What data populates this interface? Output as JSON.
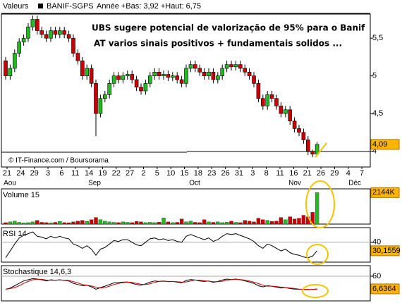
{
  "header": {
    "label": "Valeurs",
    "symbol": "BANIF-SGPS",
    "range": "Année +Bas: 3,92 +Haut: 6,75"
  },
  "chart_data": [
    {
      "type": "candlestick",
      "annotations": [
        {
          "text": "UBS sugere potencial de valorização de 95% para o Banif",
          "color": "#cc0000"
        },
        {
          "text": "AT varios sinais positivos + fundamentais solidos ...",
          "color": "#000000"
        }
      ],
      "source": "© IT-Finance.com / Boursorama",
      "date_labels": [
        "21",
        "24",
        "29",
        "3",
        "6",
        "11",
        "14",
        "19",
        "22",
        "27",
        "2",
        "5",
        "10",
        "15",
        "18",
        "23",
        "26",
        "31",
        "3",
        "8",
        "11",
        "16",
        "21",
        "26",
        "29",
        "4",
        "7"
      ],
      "month_labels": [
        "Aou",
        "Sep",
        "Oct",
        "Nov",
        "Déc"
      ],
      "open": [
        5.2,
        5.0,
        5.1,
        5.3,
        5.45,
        5.5,
        5.65,
        5.75,
        5.6,
        5.55,
        5.5,
        5.6,
        5.55,
        5.6,
        5.55,
        5.5,
        5.3,
        5.2,
        5.0,
        5.1,
        4.9,
        4.5,
        4.7,
        4.75,
        4.9,
        5.0,
        4.95,
        5.0,
        5.02,
        4.95,
        4.85,
        4.8,
        4.9,
        5.0,
        5.05,
        5.0,
        5.02,
        4.98,
        5.0,
        4.95,
        4.9,
        5.1,
        5.15,
        5.1,
        5.05,
        5.0,
        5.05,
        4.95,
        5.0,
        5.1,
        5.15,
        5.12,
        5.15,
        5.1,
        5.05,
        5.0,
        4.9,
        4.7,
        4.6,
        4.75,
        4.7,
        4.6,
        4.5,
        4.55,
        4.4,
        4.3,
        4.25,
        4.15,
        4.0,
        3.96
      ],
      "high": [
        5.25,
        5.15,
        5.35,
        5.5,
        5.55,
        5.7,
        5.8,
        5.8,
        5.65,
        5.6,
        5.65,
        5.65,
        5.65,
        5.65,
        5.6,
        5.55,
        5.35,
        5.25,
        5.15,
        5.15,
        4.95,
        4.75,
        4.8,
        4.95,
        5.05,
        5.05,
        5.05,
        5.07,
        5.07,
        5.0,
        4.9,
        4.95,
        5.05,
        5.1,
        5.1,
        5.07,
        5.07,
        5.05,
        5.05,
        5.0,
        5.15,
        5.2,
        5.2,
        5.15,
        5.1,
        5.1,
        5.1,
        5.05,
        5.15,
        5.2,
        5.2,
        5.2,
        5.2,
        5.15,
        5.1,
        5.05,
        4.95,
        4.75,
        4.8,
        4.8,
        4.75,
        4.65,
        4.6,
        4.6,
        4.45,
        4.35,
        4.3,
        4.2,
        4.02,
        4.12
      ],
      "low": [
        4.95,
        4.95,
        5.05,
        5.25,
        5.4,
        5.45,
        5.6,
        5.55,
        5.5,
        5.45,
        5.45,
        5.5,
        5.5,
        5.5,
        5.45,
        5.25,
        5.15,
        4.95,
        4.95,
        4.85,
        4.2,
        4.45,
        4.65,
        4.7,
        4.85,
        4.9,
        4.9,
        4.95,
        4.9,
        4.8,
        4.75,
        4.75,
        4.85,
        4.95,
        4.95,
        4.95,
        4.93,
        4.93,
        4.9,
        4.85,
        4.85,
        5.05,
        5.05,
        5.0,
        4.95,
        4.95,
        4.9,
        4.9,
        4.95,
        5.05,
        5.07,
        5.07,
        5.05,
        5.0,
        4.95,
        4.85,
        4.65,
        4.55,
        4.55,
        4.65,
        4.55,
        4.45,
        4.45,
        4.35,
        4.25,
        4.2,
        4.1,
        3.95,
        3.92,
        3.94
      ],
      "close": [
        5.0,
        5.1,
        5.3,
        5.45,
        5.5,
        5.65,
        5.75,
        5.6,
        5.55,
        5.5,
        5.6,
        5.55,
        5.6,
        5.55,
        5.5,
        5.3,
        5.2,
        5.0,
        5.1,
        4.9,
        4.5,
        4.7,
        4.75,
        4.9,
        5.0,
        4.95,
        5.0,
        5.02,
        4.95,
        4.85,
        4.8,
        4.9,
        5.0,
        5.05,
        5.0,
        5.02,
        4.98,
        5.0,
        4.95,
        4.9,
        5.1,
        5.15,
        5.1,
        5.05,
        5.0,
        5.05,
        4.95,
        5.0,
        5.1,
        5.15,
        5.12,
        5.15,
        5.1,
        5.05,
        5.0,
        4.9,
        4.7,
        4.6,
        4.75,
        4.7,
        4.6,
        4.5,
        4.55,
        4.4,
        4.3,
        4.25,
        4.15,
        4.0,
        3.96,
        4.09
      ],
      "up_color": "#22bb22",
      "down_color": "#cc0000",
      "ylim": [
        3.79,
        5.82
      ],
      "yticks": [
        {
          "value": 5.5,
          "label": "5,5"
        },
        5,
        {
          "value": 4.5,
          "label": "4,5"
        },
        4
      ],
      "last_tick": {
        "value": 4.09,
        "label": "4,09"
      }
    },
    {
      "type": "bar",
      "title": "Volume 15",
      "values": [
        100,
        150,
        200,
        120,
        80,
        100,
        150,
        250,
        120,
        100,
        80,
        120,
        180,
        100,
        90,
        150,
        200,
        250,
        180,
        300,
        450,
        300,
        200,
        150,
        120,
        100,
        150,
        120,
        100,
        180,
        150,
        100,
        120,
        100,
        130,
        420,
        150,
        100,
        120,
        350,
        150,
        200,
        120,
        100,
        300,
        150,
        120,
        150,
        100,
        130,
        200,
        120,
        100,
        250,
        200,
        150,
        400,
        300,
        250,
        180,
        200,
        450,
        300,
        500,
        350,
        400,
        600,
        500,
        800,
        2144
      ],
      "ylim": [
        0,
        2400
      ],
      "last_tick": {
        "value": 2144,
        "label": "2144K"
      }
    },
    {
      "type": "line",
      "title": "RSI 14",
      "series": [
        {
          "color": "#000000",
          "values": [
            22,
            30,
            38,
            45,
            48,
            50,
            52,
            47,
            46,
            44,
            47,
            45,
            47,
            45,
            44,
            38,
            36,
            33,
            36,
            32,
            25,
            32,
            34,
            38,
            42,
            41,
            43,
            43,
            40,
            37,
            36,
            40,
            44,
            45,
            43,
            44,
            42,
            43,
            41,
            40,
            47,
            49,
            47,
            45,
            43,
            45,
            41,
            43,
            47,
            50,
            49,
            50,
            48,
            46,
            44,
            41,
            36,
            33,
            38,
            36,
            33,
            30,
            32,
            28,
            26,
            25,
            23,
            22,
            24,
            30.1559
          ]
        }
      ],
      "ylim": [
        17,
        57
      ],
      "yticks": [
        40
      ],
      "last_tick": {
        "value": 30.1559,
        "label": "30,1559"
      }
    },
    {
      "type": "line",
      "title": "Stochastique 14,6,3",
      "series": [
        {
          "color": "#000000",
          "values": [
            5,
            10,
            20,
            30,
            40,
            45,
            50,
            48,
            45,
            40,
            45,
            43,
            45,
            42,
            40,
            30,
            25,
            20,
            22,
            15,
            5,
            12,
            18,
            25,
            32,
            33,
            35,
            36,
            30,
            25,
            22,
            28,
            35,
            40,
            38,
            40,
            37,
            38,
            35,
            32,
            42,
            46,
            44,
            40,
            38,
            40,
            34,
            38,
            44,
            48,
            46,
            48,
            45,
            40,
            36,
            30,
            20,
            15,
            20,
            18,
            14,
            10,
            12,
            8,
            6,
            5,
            4,
            3,
            4,
            6.6364
          ]
        },
        {
          "color": "#cc0000",
          "values": [
            5,
            8,
            12,
            20,
            30,
            38,
            45,
            47,
            47,
            44,
            43,
            43,
            44,
            43,
            42,
            37,
            32,
            25,
            22,
            19,
            14,
            11,
            12,
            18,
            25,
            30,
            33,
            35,
            34,
            30,
            26,
            25,
            28,
            34,
            38,
            39,
            38,
            38,
            37,
            35,
            36,
            40,
            44,
            43,
            41,
            39,
            37,
            37,
            39,
            43,
            46,
            47,
            46,
            44,
            40,
            35,
            29,
            22,
            18,
            18,
            17,
            14,
            12,
            10,
            9,
            6,
            5,
            4,
            4,
            5
          ]
        }
      ],
      "ylim": [
        -44,
        104.5
      ],
      "yticks": [
        60
      ],
      "last_tick": {
        "value": 6.6364,
        "label": "6,6364"
      }
    }
  ]
}
